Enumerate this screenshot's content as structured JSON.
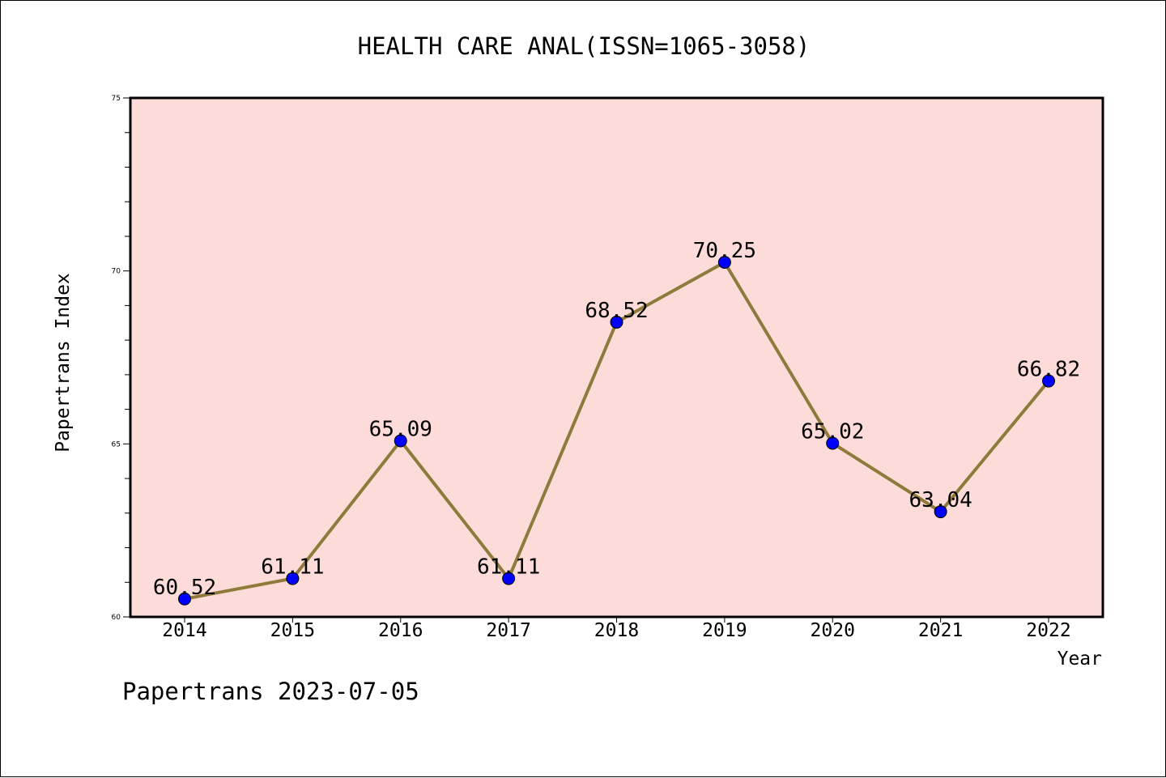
{
  "chart_data": {
    "type": "line",
    "title": "HEALTH CARE ANAL(ISSN=1065-3058)",
    "xlabel": "Year",
    "ylabel": "Papertrans Index",
    "categories": [
      "2014",
      "2015",
      "2016",
      "2017",
      "2018",
      "2019",
      "2020",
      "2021",
      "2022"
    ],
    "series": [
      {
        "values": [
          60.52,
          61.11,
          65.09,
          61.11,
          68.52,
          70.25,
          65.02,
          63.04,
          66.82
        ],
        "labels": [
          "60.52",
          "61.11",
          "65.09",
          "61.11",
          "68.52",
          "70.25",
          "65.02",
          "63.04",
          "66.82"
        ]
      }
    ],
    "ylim": [
      60,
      75
    ],
    "yticks": [
      "60",
      "65",
      "70",
      "75"
    ],
    "y_minor_step": 1,
    "grid": false,
    "legend": "none",
    "colors": {
      "plot_background": "#fddbd8",
      "line": "#8f7a3c",
      "marker": "#0000ff",
      "marker_edge": "#000000"
    }
  },
  "footer": {
    "text": "Papertrans 2023-07-05"
  }
}
